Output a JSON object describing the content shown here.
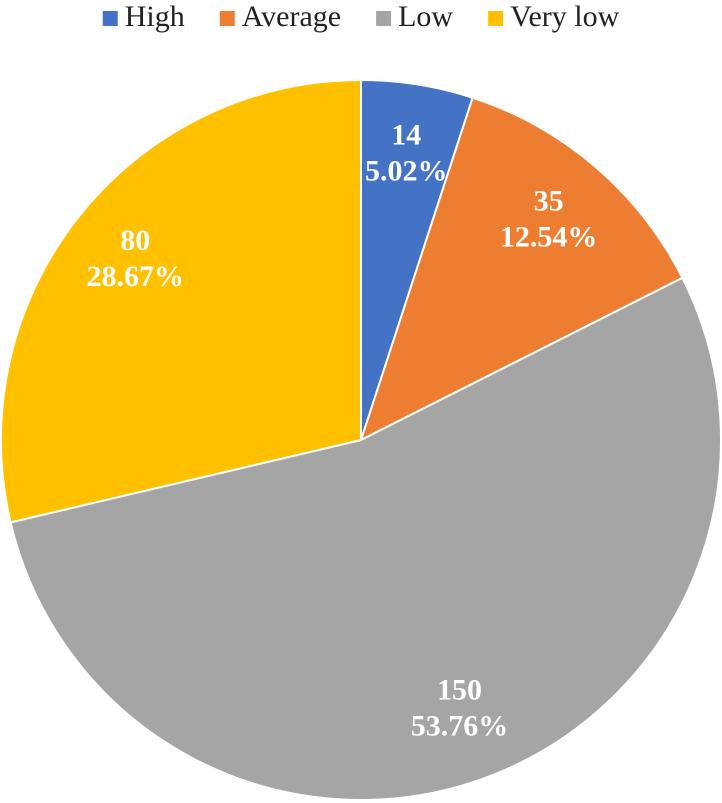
{
  "chart_data": {
    "type": "pie",
    "categories": [
      "High",
      "Average",
      "Low",
      "Very low"
    ],
    "values": [
      14,
      35,
      150,
      80
    ],
    "percentage_labels": [
      "5.02%",
      "12.54%",
      "53.76%",
      "28.67%"
    ],
    "colors": [
      "#4472c4",
      "#ed7d31",
      "#a5a5a5",
      "#ffc000"
    ],
    "legend": "top"
  }
}
